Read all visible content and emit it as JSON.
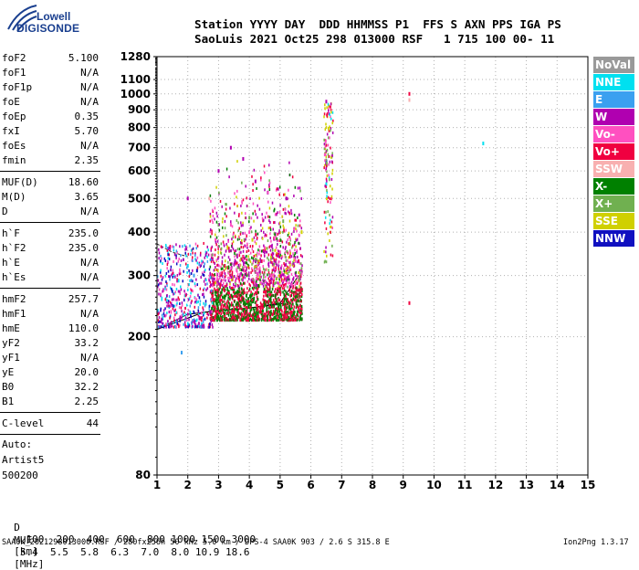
{
  "logo": {
    "brand_top": "Lowell",
    "brand_bottom": "DIGISONDE"
  },
  "header": {
    "line1": "Station YYYY DAY  DDD HHMMSS P1  FFS S AXN PPS IGA PS",
    "line2": "SaoLuis 2021 Oct25 298 013000 RSF   1 715 100 00- 11"
  },
  "parameters": [
    {
      "name": "foF2",
      "value": "5.100"
    },
    {
      "name": "foF1",
      "value": "N/A"
    },
    {
      "name": "foF1p",
      "value": "N/A"
    },
    {
      "name": "foE",
      "value": "N/A"
    },
    {
      "name": "foEp",
      "value": "0.35"
    },
    {
      "name": "fxI",
      "value": "5.70"
    },
    {
      "name": "foEs",
      "value": "N/A"
    },
    {
      "name": "fmin",
      "value": "2.35"
    },
    {
      "name": "MUF(D)",
      "value": "18.60"
    },
    {
      "name": "M(D)",
      "value": "3.65"
    },
    {
      "name": "D",
      "value": "N/A"
    },
    {
      "name": "h`F",
      "value": "235.0"
    },
    {
      "name": "h`F2",
      "value": "235.0"
    },
    {
      "name": "h`E",
      "value": "N/A"
    },
    {
      "name": "h`Es",
      "value": "N/A"
    },
    {
      "name": "hmF2",
      "value": "257.7"
    },
    {
      "name": "hmF1",
      "value": "N/A"
    },
    {
      "name": "hmE",
      "value": "110.0"
    },
    {
      "name": "yF2",
      "value": "33.2"
    },
    {
      "name": "yF1",
      "value": "N/A"
    },
    {
      "name": "yE",
      "value": "20.0"
    },
    {
      "name": "B0",
      "value": "32.2"
    },
    {
      "name": "B1",
      "value": "2.25"
    },
    {
      "name": "C-level",
      "value": "44"
    }
  ],
  "autoscale": {
    "line1": "Auto:",
    "line2": "Artist5",
    "line3": "500200"
  },
  "legend": [
    {
      "label": "NoVal",
      "color": "#999999"
    },
    {
      "label": "NNE",
      "color": "#00e0f0"
    },
    {
      "label": "E",
      "color": "#3aa0f0"
    },
    {
      "label": "W",
      "color": "#b000b0"
    },
    {
      "label": "Vo-",
      "color": "#ff50c0"
    },
    {
      "label": "Vo+",
      "color": "#f00040"
    },
    {
      "label": "SSW",
      "color": "#f8b0b0"
    },
    {
      "label": "X-",
      "color": "#008000"
    },
    {
      "label": "X+",
      "color": "#70b050"
    },
    {
      "label": "SSE",
      "color": "#d0d000"
    },
    {
      "label": "NNW",
      "color": "#1010c0"
    }
  ],
  "muf_table": {
    "row1_label": "D",
    "row1_values": [
      "100",
      "200",
      "400",
      "600",
      "800",
      "1000",
      "1500",
      "3000"
    ],
    "row1_unit": "[km]",
    "row2_label": "MUF",
    "row2_values": [
      "5.4",
      "5.5",
      "5.8",
      "6.3",
      "7.0",
      "8.0",
      "10.9",
      "18.6"
    ],
    "row2_unit": "[MHz]"
  },
  "footer": {
    "file_info": "SAA0K_2021298013000.RSF / 280fx256h 50 kHz 5.0 km / DPS-4 SAA0K 903 / 2.6 S 315.8 E",
    "version": "Ion2Png 1.3.17"
  },
  "chart_data": {
    "type": "scatter",
    "title": "",
    "xlabel": "",
    "ylabel": "",
    "xlim": [
      1,
      15
    ],
    "ylim": [
      80,
      1280
    ],
    "x_ticks": [
      1,
      2,
      3,
      4,
      5,
      6,
      7,
      8,
      9,
      10,
      11,
      12,
      13,
      14,
      15
    ],
    "y_ticks": [
      80,
      200,
      300,
      400,
      500,
      600,
      700,
      800,
      900,
      1000,
      1100,
      1280
    ],
    "y_scale": "log",
    "grid": true,
    "legend_position": "right",
    "series": [
      {
        "legend": "W",
        "points": [
          [
            3.0,
            600
          ],
          [
            3.4,
            700
          ],
          [
            3.8,
            650
          ],
          [
            4.2,
            560
          ],
          [
            4.6,
            520
          ],
          [
            5.2,
            500
          ],
          [
            6.5,
            950
          ],
          [
            2.0,
            500
          ]
        ]
      },
      {
        "legend": "Vo-",
        "points": [
          [
            2.9,
            380
          ],
          [
            3.4,
            420
          ],
          [
            4.0,
            400
          ],
          [
            4.5,
            360
          ],
          [
            5.0,
            350
          ],
          [
            5.5,
            330
          ]
        ]
      },
      {
        "legend": "Vo+",
        "points": [
          [
            3.2,
            320
          ],
          [
            3.8,
            340
          ],
          [
            4.4,
            330
          ],
          [
            5.2,
            310
          ],
          [
            5.6,
            330
          ],
          [
            9.2,
            1000
          ],
          [
            9.2,
            250
          ]
        ]
      },
      {
        "legend": "X-",
        "points": [
          [
            2.8,
            265
          ],
          [
            3.5,
            272
          ],
          [
            4.3,
            280
          ],
          [
            5.0,
            275
          ]
        ]
      },
      {
        "legend": "X+",
        "points": [
          [
            3.0,
            420
          ],
          [
            4.0,
            440
          ],
          [
            5.1,
            430
          ]
        ]
      },
      {
        "legend": "SSE",
        "points": [
          [
            3.3,
            360
          ],
          [
            4.1,
            380
          ],
          [
            5.3,
            370
          ],
          [
            5.7,
            400
          ]
        ]
      },
      {
        "legend": "NNE",
        "points": [
          [
            1.7,
            290
          ],
          [
            2.0,
            320
          ],
          [
            6.5,
            550
          ],
          [
            11.6,
            720
          ]
        ]
      },
      {
        "legend": "E",
        "points": [
          [
            1.5,
            270
          ],
          [
            2.2,
            300
          ],
          [
            1.8,
            180
          ]
        ]
      },
      {
        "legend": "NNW",
        "points": [
          [
            2.3,
            310
          ],
          [
            6.5,
            640
          ]
        ]
      },
      {
        "legend": "SSW",
        "points": [
          [
            2.7,
            500
          ],
          [
            9.2,
            960
          ]
        ]
      }
    ],
    "trace_lines": [
      {
        "name": "x-trace",
        "points": [
          [
            1.0,
            210
          ],
          [
            2.5,
            235
          ],
          [
            4.0,
            242
          ],
          [
            5.0,
            248
          ],
          [
            5.1,
            250
          ]
        ]
      },
      {
        "name": "o-trace",
        "points": [
          [
            1.0,
            210
          ],
          [
            2.0,
            232
          ],
          [
            3.0,
            238
          ],
          [
            4.0,
            242
          ],
          [
            5.0,
            250
          ],
          [
            5.6,
            300
          ]
        ]
      },
      {
        "name": "e-trace",
        "points": [
          [
            1.0,
            370
          ],
          [
            1.5,
            350
          ],
          [
            2.0,
            340
          ]
        ]
      }
    ]
  }
}
